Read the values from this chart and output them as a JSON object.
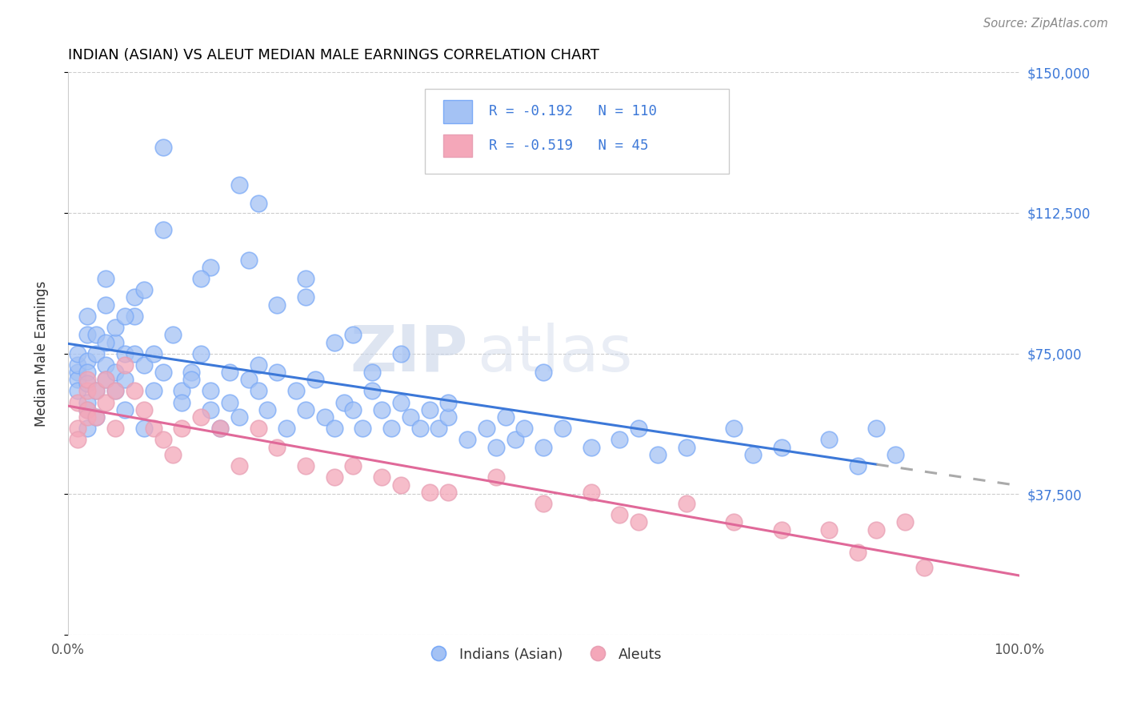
{
  "title": "INDIAN (ASIAN) VS ALEUT MEDIAN MALE EARNINGS CORRELATION CHART",
  "source_text": "Source: ZipAtlas.com",
  "ylabel": "Median Male Earnings",
  "xlim": [
    0,
    1.0
  ],
  "ylim": [
    0,
    150000
  ],
  "xticks": [
    0.0,
    0.25,
    0.5,
    0.75,
    1.0
  ],
  "xticklabels": [
    "0.0%",
    "",
    "",
    "",
    "100.0%"
  ],
  "yticks": [
    0,
    37500,
    75000,
    112500,
    150000
  ],
  "yticklabels_right": [
    "",
    "$37,500",
    "$75,000",
    "$112,500",
    "$150,000"
  ],
  "blue_color": "#a4c2f4",
  "pink_color": "#f4a7b9",
  "blue_line_color": "#3c78d8",
  "pink_line_color": "#e06999",
  "R_blue": -0.192,
  "N_blue": 110,
  "R_pink": -0.519,
  "N_pink": 45,
  "legend_label_blue": "Indians (Asian)",
  "legend_label_pink": "Aleuts",
  "watermark_zip": "ZIP",
  "watermark_atlas": "atlas",
  "background_color": "#ffffff",
  "grid_color": "#cccccc",
  "title_color": "#000000",
  "axis_label_color": "#3c78d8",
  "blue_scatter_x": [
    0.01,
    0.01,
    0.01,
    0.01,
    0.01,
    0.02,
    0.02,
    0.02,
    0.02,
    0.02,
    0.02,
    0.02,
    0.02,
    0.03,
    0.03,
    0.03,
    0.03,
    0.04,
    0.04,
    0.04,
    0.04,
    0.05,
    0.05,
    0.05,
    0.05,
    0.06,
    0.06,
    0.06,
    0.07,
    0.07,
    0.07,
    0.08,
    0.08,
    0.09,
    0.09,
    0.1,
    0.1,
    0.11,
    0.12,
    0.12,
    0.13,
    0.13,
    0.14,
    0.15,
    0.15,
    0.16,
    0.17,
    0.17,
    0.18,
    0.19,
    0.2,
    0.2,
    0.21,
    0.22,
    0.23,
    0.24,
    0.25,
    0.26,
    0.27,
    0.28,
    0.29,
    0.3,
    0.31,
    0.32,
    0.33,
    0.34,
    0.35,
    0.36,
    0.37,
    0.38,
    0.39,
    0.4,
    0.42,
    0.44,
    0.45,
    0.46,
    0.47,
    0.48,
    0.5,
    0.52,
    0.55,
    0.58,
    0.6,
    0.62,
    0.65,
    0.7,
    0.72,
    0.75,
    0.8,
    0.83,
    0.85,
    0.87,
    0.2,
    0.25,
    0.3,
    0.18,
    0.22,
    0.28,
    0.1,
    0.15,
    0.32,
    0.4,
    0.5,
    0.35,
    0.25,
    0.19,
    0.14,
    0.08,
    0.06,
    0.04
  ],
  "blue_scatter_y": [
    70000,
    68000,
    65000,
    72000,
    75000,
    60000,
    55000,
    80000,
    73000,
    62000,
    85000,
    70000,
    67000,
    75000,
    80000,
    65000,
    58000,
    72000,
    68000,
    95000,
    88000,
    78000,
    82000,
    65000,
    70000,
    75000,
    60000,
    68000,
    85000,
    75000,
    90000,
    72000,
    55000,
    65000,
    75000,
    130000,
    70000,
    80000,
    65000,
    62000,
    70000,
    68000,
    75000,
    60000,
    65000,
    55000,
    70000,
    62000,
    58000,
    68000,
    65000,
    72000,
    60000,
    70000,
    55000,
    65000,
    60000,
    68000,
    58000,
    55000,
    62000,
    60000,
    55000,
    65000,
    60000,
    55000,
    62000,
    58000,
    55000,
    60000,
    55000,
    58000,
    52000,
    55000,
    50000,
    58000,
    52000,
    55000,
    50000,
    55000,
    50000,
    52000,
    55000,
    48000,
    50000,
    55000,
    48000,
    50000,
    52000,
    45000,
    55000,
    48000,
    115000,
    90000,
    80000,
    120000,
    88000,
    78000,
    108000,
    98000,
    70000,
    62000,
    70000,
    75000,
    95000,
    100000,
    95000,
    92000,
    85000,
    78000
  ],
  "pink_scatter_x": [
    0.01,
    0.01,
    0.01,
    0.02,
    0.02,
    0.02,
    0.02,
    0.03,
    0.03,
    0.04,
    0.04,
    0.05,
    0.05,
    0.06,
    0.07,
    0.08,
    0.09,
    0.1,
    0.11,
    0.12,
    0.14,
    0.16,
    0.18,
    0.2,
    0.22,
    0.25,
    0.28,
    0.3,
    0.33,
    0.35,
    0.38,
    0.4,
    0.45,
    0.5,
    0.55,
    0.58,
    0.6,
    0.65,
    0.7,
    0.75,
    0.8,
    0.83,
    0.85,
    0.88,
    0.9
  ],
  "pink_scatter_y": [
    62000,
    55000,
    52000,
    65000,
    60000,
    68000,
    58000,
    65000,
    58000,
    68000,
    62000,
    65000,
    55000,
    72000,
    65000,
    60000,
    55000,
    52000,
    48000,
    55000,
    58000,
    55000,
    45000,
    55000,
    50000,
    45000,
    42000,
    45000,
    42000,
    40000,
    38000,
    38000,
    42000,
    35000,
    38000,
    32000,
    30000,
    35000,
    30000,
    28000,
    28000,
    22000,
    28000,
    30000,
    18000
  ],
  "blue_trend_start_x": 0.0,
  "blue_trend_end_solid_x": 0.85,
  "blue_trend_end_x": 1.0,
  "pink_trend_start_x": 0.0,
  "pink_trend_end_x": 1.0,
  "blue_trend_y0": 79000,
  "blue_trend_slope": -22000,
  "pink_trend_y0": 65000,
  "pink_trend_slope": -38000
}
